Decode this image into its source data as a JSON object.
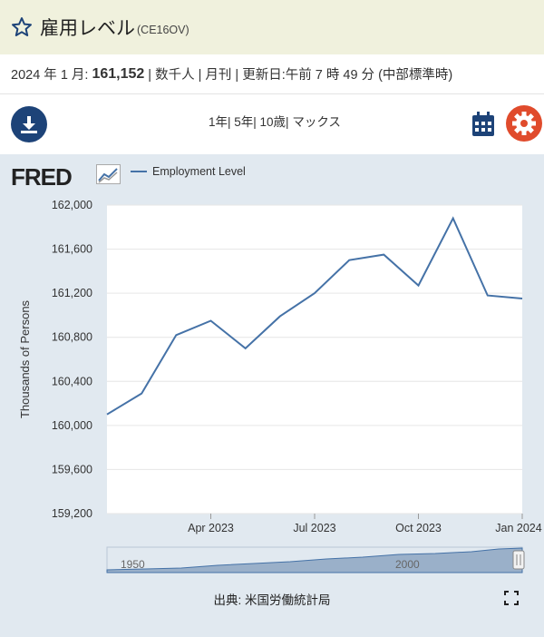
{
  "header": {
    "title": "雇用レベル",
    "series_id": "(CE16OV)"
  },
  "meta": {
    "date_label": "2024 年 1 月:",
    "value": "161,152",
    "units": "| 数千人 | 月刊 | 更新日:午前 7 時 49 分 (中部標準時)"
  },
  "toolbar": {
    "ranges": [
      "1年|",
      " 5年|",
      " 10歳|",
      " マックス"
    ]
  },
  "chart": {
    "logo": "FRED",
    "legend": "Employment Level",
    "source": "出典: 米国労働統計局",
    "navigator_labels": [
      "1950",
      "2000"
    ]
  },
  "chart_data": {
    "type": "line",
    "series": [
      {
        "name": "Employment Level",
        "x": [
          "2023-01",
          "2023-02",
          "2023-03",
          "2023-04",
          "2023-05",
          "2023-06",
          "2023-07",
          "2023-08",
          "2023-09",
          "2023-10",
          "2023-11",
          "2023-12",
          "2024-01"
        ],
        "values": [
          160100,
          160290,
          160820,
          160950,
          160700,
          160990,
          161200,
          161500,
          161550,
          161270,
          161880,
          161180,
          161152
        ]
      }
    ],
    "xticks": [
      "Apr 2023",
      "Jul 2023",
      "Oct 2023",
      "Jan 2024"
    ],
    "yticks": [
      "162,000",
      "161,600",
      "161,200",
      "160,800",
      "160,400",
      "160,000",
      "159,600",
      "159,200"
    ],
    "ylabel": "Thousands of Persons",
    "ylim": [
      159200,
      162000
    ],
    "grid": true,
    "color": "#4572a7"
  }
}
